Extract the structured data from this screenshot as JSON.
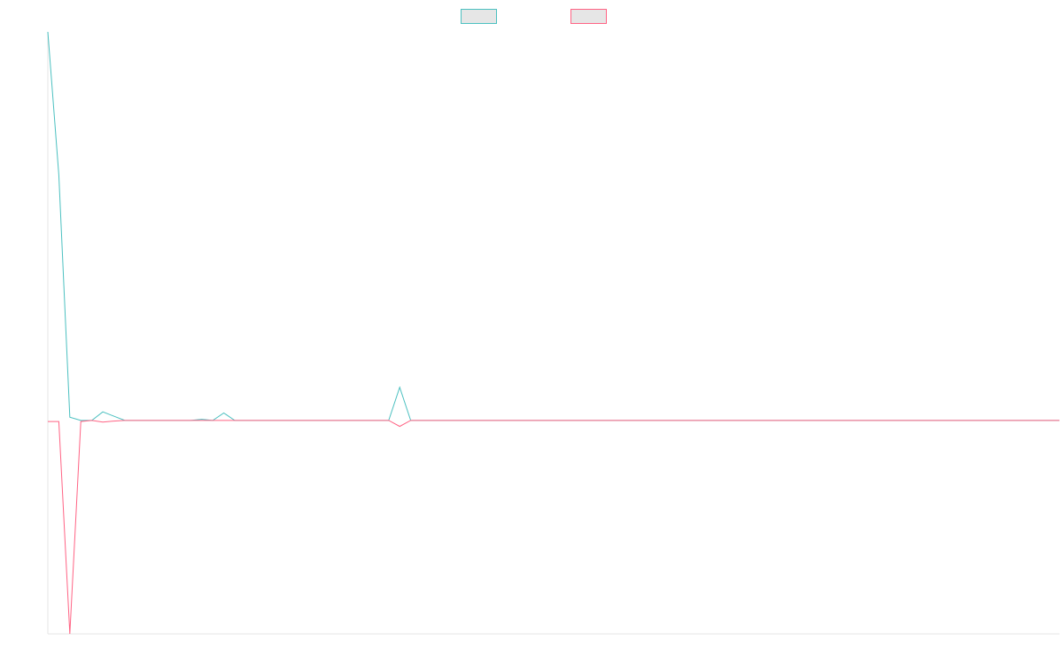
{
  "chart_data": {
    "type": "line",
    "title": "",
    "xlabel": "",
    "ylabel": "",
    "x": [
      0,
      1,
      2,
      3,
      4,
      5,
      6,
      7,
      8,
      9,
      10,
      11,
      12,
      13,
      14,
      15,
      16,
      17,
      18,
      19,
      20,
      21,
      22,
      23,
      24,
      25,
      26,
      27,
      28,
      29,
      30,
      31,
      32,
      33,
      34,
      35,
      36,
      37,
      38,
      39,
      40,
      41,
      42,
      43,
      44,
      45,
      46,
      47,
      48,
      49,
      50,
      51,
      52,
      53,
      54,
      55,
      56,
      57,
      58,
      59,
      60,
      61,
      62,
      63,
      64,
      65,
      66,
      67,
      68,
      69,
      70,
      71,
      72,
      73,
      74,
      75,
      76,
      77,
      78,
      79,
      80,
      81,
      82,
      83,
      84,
      85,
      86,
      87,
      88,
      89,
      90,
      91,
      92
    ],
    "xlim": [
      0,
      92
    ],
    "ylim": [
      -100,
      182
    ],
    "grid": false,
    "legend_position": "top-center",
    "series": [
      {
        "color": "#4bc0c0",
        "values": [
          182,
          115,
          1.5,
          0,
          0,
          4,
          2,
          0,
          0,
          0,
          0,
          0,
          0,
          0,
          0.5,
          0,
          3.5,
          0,
          0,
          0,
          0,
          0,
          0,
          0,
          0,
          0,
          0,
          0,
          0,
          0,
          0,
          0,
          15.5,
          0,
          0,
          0,
          0,
          0,
          0,
          0,
          0,
          0,
          0,
          0,
          0,
          0,
          0,
          0,
          0,
          0,
          0,
          0,
          0,
          0,
          0,
          0,
          0,
          0,
          0,
          0,
          0,
          0,
          0,
          0,
          0,
          0,
          0,
          0,
          0,
          0,
          0,
          0,
          0,
          0,
          0,
          0,
          0,
          0,
          0,
          0,
          0,
          0,
          0,
          0,
          0,
          0,
          0,
          0,
          0,
          0,
          0,
          0,
          0
        ]
      },
      {
        "color": "#ff6384",
        "values": [
          -0.5,
          -0.5,
          -100,
          -0.5,
          0,
          -0.8,
          -0.3,
          0,
          0,
          0,
          0,
          0,
          0,
          0,
          0,
          0,
          0,
          0,
          0,
          0,
          0,
          0,
          0,
          0,
          0,
          0,
          0,
          0,
          0,
          0,
          0,
          0,
          -2.8,
          0,
          0,
          0,
          0,
          0,
          0,
          0,
          0,
          0,
          0,
          0,
          0,
          0,
          0,
          0,
          0,
          0,
          0,
          0,
          0,
          0,
          0,
          0,
          0,
          0,
          0,
          0,
          0,
          0,
          0,
          0,
          0,
          0,
          0,
          0,
          0,
          0,
          0,
          0,
          0,
          0,
          0,
          0,
          0,
          0,
          0,
          0,
          0,
          0,
          0,
          0,
          0,
          0,
          0,
          0,
          0,
          0,
          0,
          0,
          0
        ]
      }
    ]
  }
}
